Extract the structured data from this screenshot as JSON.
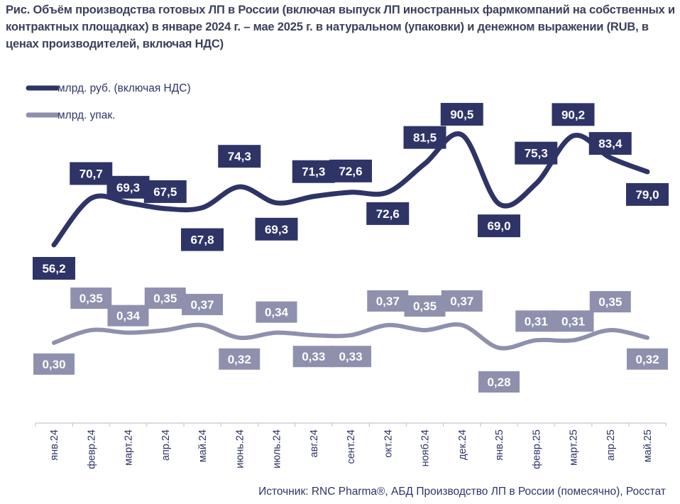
{
  "chart_data": {
    "type": "line",
    "title": "Рис. Объём производства готовых ЛП в России (включая выпуск ЛП иностранных фармкомпаний на собственных и контрактных площадках) в январе 2024 г. – мае 2025 г. в натуральном (упаковки) и денежном выражении (RUB, в ценах производителей, включая НДС)",
    "categories": [
      "янв.24",
      "февр.24",
      "март.24",
      "апр.24",
      "май.24",
      "июнь.24",
      "июль.24",
      "авг.24",
      "сент.24",
      "окт.24",
      "нояб.24",
      "дек.24",
      "янв.25",
      "февр.25",
      "март.25",
      "апр.25",
      "май.25"
    ],
    "series": [
      {
        "name": "млрд. руб. (включая НДС)",
        "color": "#2e3466",
        "values": [
          56.2,
          70.7,
          69.3,
          67.5,
          67.8,
          74.3,
          69.3,
          71.3,
          72.6,
          72.6,
          81.5,
          90.5,
          69.0,
          75.3,
          90.2,
          83.4,
          79.0
        ],
        "labels": [
          "56,2",
          "70,7",
          "69,3",
          "67,5",
          "67,8",
          "74,3",
          "69,3",
          "71,3",
          "72,6",
          "72,6",
          "81,5",
          "90,5",
          "69,0",
          "75,3",
          "90,2",
          "83,4",
          "79,0"
        ]
      },
      {
        "name": "млрд. упак.",
        "color": "#8e90ad",
        "values": [
          0.3,
          0.35,
          0.34,
          0.35,
          0.37,
          0.32,
          0.34,
          0.33,
          0.33,
          0.37,
          0.35,
          0.37,
          0.28,
          0.31,
          0.31,
          0.35,
          0.32
        ],
        "labels": [
          "0,30",
          "0,35",
          "0,34",
          "0,35",
          "0,37",
          "0,32",
          "0,34",
          "0,33",
          "0,33",
          "0,37",
          "0,35",
          "0,37",
          "0,28",
          "0,31",
          "0,31",
          "0,35",
          "0,32"
        ]
      }
    ],
    "legend": "top-left",
    "grid": false,
    "source": "Источник: RNC Pharma®, АБД Производство ЛП в России (помесячно), Росстат"
  }
}
